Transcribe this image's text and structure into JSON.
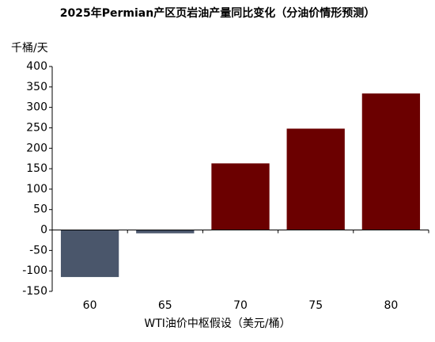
{
  "chart_data": {
    "type": "bar",
    "title": "2025年Permian产区页岩油产量同比变化（分油价情形预测）",
    "ylabel": "千桶/天",
    "xlabel": "WTI油价中枢假设（美元/桶）",
    "categories": [
      "60",
      "65",
      "70",
      "75",
      "80"
    ],
    "values": [
      -115,
      -8,
      163,
      248,
      334
    ],
    "colors": [
      "#4a566b",
      "#4a566b",
      "#6b0000",
      "#6b0000",
      "#6b0000"
    ],
    "ylim": [
      -150,
      400
    ],
    "yticks": [
      -150,
      -100,
      -50,
      0,
      50,
      100,
      150,
      200,
      250,
      300,
      350,
      400
    ],
    "ytick_labels": [
      "-150",
      "-100",
      "-50",
      "0",
      "50",
      "100",
      "150",
      "200",
      "250",
      "300",
      "350",
      "400"
    ],
    "grid": false,
    "legend": false
  }
}
